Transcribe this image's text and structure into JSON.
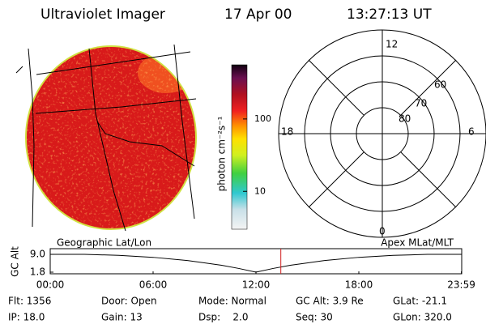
{
  "header": {
    "instrument": "Ultraviolet Imager",
    "date": "17 Apr 00",
    "time": "13:27:13 UT"
  },
  "colorbar": {
    "label": "photon cm⁻²s⁻¹",
    "log_scale": true,
    "lim": [
      3,
      560
    ],
    "ticks": [
      10,
      100
    ]
  },
  "polar": {
    "mlt_labels": [
      "12",
      "6",
      "0",
      "18"
    ],
    "mlat_labels": [
      "60",
      "70",
      "80"
    ]
  },
  "timeline": {
    "left_title": "Geographic Lat/Lon",
    "right_title": "Apex MLat/MLT",
    "y_label": "GC Alt",
    "xlim": [
      0,
      24
    ],
    "ylim": [
      1.15,
      11.3
    ],
    "xticks": [
      {
        "value": 0,
        "label": "00:00"
      },
      {
        "value": 6,
        "label": "06:00"
      },
      {
        "value": 12,
        "label": "12:00"
      },
      {
        "value": 18,
        "label": "18:00"
      },
      {
        "value": 23.98,
        "label": "23:59"
      }
    ],
    "yticks": [
      {
        "value": 9.0,
        "label": "9.0"
      },
      {
        "value": 1.8,
        "label": "1.8"
      }
    ],
    "x": [
      0,
      2,
      4,
      6,
      8,
      10,
      11,
      12,
      13,
      14,
      16,
      18,
      20,
      22,
      23.98
    ],
    "values": [
      9.0,
      9.0,
      8.6,
      7.8,
      6.5,
      4.6,
      3.3,
      1.8,
      3.3,
      4.6,
      6.5,
      7.8,
      8.6,
      9.0,
      9.0
    ],
    "marker": 13.45,
    "marker_color": "#d02020"
  },
  "footer": {
    "rows": [
      [
        "Flt: 1356",
        "Door: Open",
        "Mode: Normal",
        "GC Alt: 3.9 Re",
        "GLat: -21.1"
      ],
      [
        "IP: 18.0",
        "Gain: 13",
        "Dsp:    2.0",
        "Seq: 30",
        "GLon: 320.0"
      ]
    ]
  }
}
